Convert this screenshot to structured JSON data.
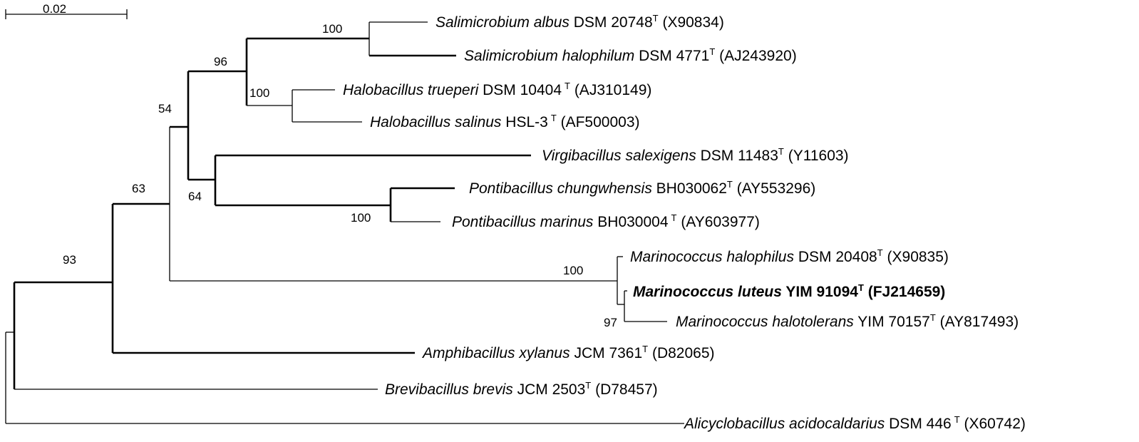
{
  "scale_bar": {
    "label": "0.02"
  },
  "taxa": [
    {
      "id": "t1",
      "species": "Salimicrobium albus",
      "strain": "DSM 20748",
      "sup": "T",
      "accession": "(X90834)"
    },
    {
      "id": "t2",
      "species": "Salimicrobium halophilum",
      "strain": "DSM 4771",
      "sup": "T",
      "accession": "(AJ243920)"
    },
    {
      "id": "t3",
      "species": "Halobacillus trueperi",
      "strain": "DSM 10404",
      "sup": "T",
      "accession": "(AJ310149)"
    },
    {
      "id": "t4",
      "species": "Halobacillus salinus",
      "strain": "HSL-3",
      "sup": "T",
      "accession": "(AF500003)"
    },
    {
      "id": "t5",
      "species": "Virgibacillus salexigens",
      "strain": "DSM 11483",
      "sup": "T",
      "accession": "(Y11603)"
    },
    {
      "id": "t6",
      "species": "Pontibacillus chungwhensis",
      "strain": "BH030062",
      "sup": "T",
      "accession": "(AY553296)"
    },
    {
      "id": "t7",
      "species": "Pontibacillus marinus",
      "strain": "BH030004",
      "sup": "T",
      "accession": "(AY603977)"
    },
    {
      "id": "t8",
      "species": "Marinococcus halophilus",
      "strain": "DSM 20408",
      "sup": "T",
      "accession": "(X90835)"
    },
    {
      "id": "t9",
      "species": "Marinococcus luteus",
      "strain": "YIM 91094",
      "sup": "T",
      "accession": "(FJ214659)",
      "bold": true
    },
    {
      "id": "t10",
      "species": "Marinococcus halotolerans",
      "strain": "YIM 70157",
      "sup": "T",
      "accession": "(AY817493)"
    },
    {
      "id": "t11",
      "species": "Amphibacillus xylanus",
      "strain": "JCM 7361",
      "sup": "T",
      "accession": "(D82065)"
    },
    {
      "id": "t12",
      "species": "Brevibacillus brevis",
      "strain": "JCM 2503",
      "sup": "T",
      "accession": "(D78457)"
    },
    {
      "id": "t13",
      "species": "Alicyclobacillus acidocaldarius",
      "strain": "DSM 446",
      "sup": "T",
      "accession": "(X60742)"
    }
  ],
  "bootstrap": {
    "salimicrobium": "100",
    "salimicrobium_halobacillus": "96",
    "halobacillus": "100",
    "upper_clade": "54",
    "virgibacillus_pontibacillus": "64",
    "pontibacillus": "100",
    "ingroup": "63",
    "marinococcus": "100",
    "marinococcus_inner": "97",
    "root_clade": "93"
  }
}
